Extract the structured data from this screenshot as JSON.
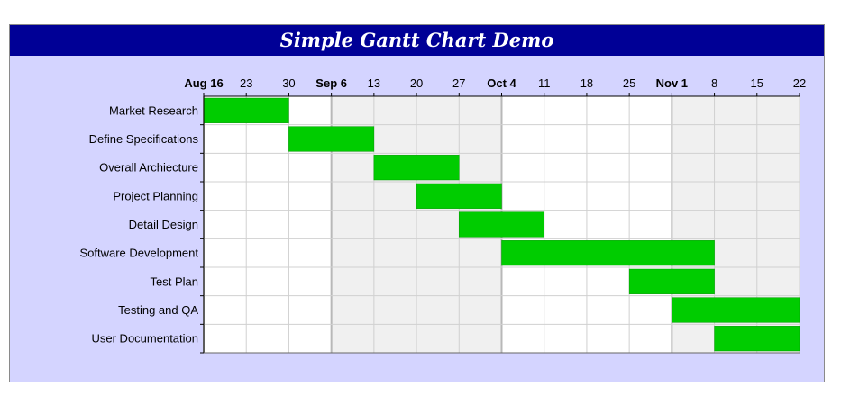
{
  "title": "Simple Gantt Chart Demo",
  "chart_data": {
    "type": "bar",
    "orientation": "horizontal-gantt",
    "title": "Simple Gantt Chart Demo",
    "xlabel": "",
    "ylabel": "",
    "xlim": [
      "2004-08-16",
      "2004-11-22"
    ],
    "x_ticks": [
      {
        "date": "2004-08-16",
        "label": "Aug 16",
        "major": true
      },
      {
        "date": "2004-08-23",
        "label": "23",
        "major": false
      },
      {
        "date": "2004-08-30",
        "label": "30",
        "major": false
      },
      {
        "date": "2004-09-06",
        "label": "Sep 6",
        "major": true
      },
      {
        "date": "2004-09-13",
        "label": "13",
        "major": false
      },
      {
        "date": "2004-09-20",
        "label": "20",
        "major": false
      },
      {
        "date": "2004-09-27",
        "label": "27",
        "major": false
      },
      {
        "date": "2004-10-04",
        "label": "Oct 4",
        "major": true
      },
      {
        "date": "2004-10-11",
        "label": "11",
        "major": false
      },
      {
        "date": "2004-10-18",
        "label": "18",
        "major": false
      },
      {
        "date": "2004-10-25",
        "label": "25",
        "major": false
      },
      {
        "date": "2004-11-01",
        "label": "Nov 1",
        "major": true
      },
      {
        "date": "2004-11-08",
        "label": "8",
        "major": false
      },
      {
        "date": "2004-11-15",
        "label": "15",
        "major": false
      },
      {
        "date": "2004-11-22",
        "label": "22",
        "major": false
      }
    ],
    "grid": true,
    "bar_color": "#00cc00",
    "shade_color": "#f0f0f0",
    "tasks": [
      {
        "name": "Market Research",
        "start": "2004-08-16",
        "end": "2004-08-30"
      },
      {
        "name": "Define Specifications",
        "start": "2004-08-30",
        "end": "2004-09-13"
      },
      {
        "name": "Overall Archiecture",
        "start": "2004-09-13",
        "end": "2004-09-27"
      },
      {
        "name": "Project Planning",
        "start": "2004-09-20",
        "end": "2004-10-04"
      },
      {
        "name": "Detail Design",
        "start": "2004-09-27",
        "end": "2004-10-11"
      },
      {
        "name": "Software Development",
        "start": "2004-10-04",
        "end": "2004-11-08"
      },
      {
        "name": "Test Plan",
        "start": "2004-10-25",
        "end": "2004-11-08"
      },
      {
        "name": "Testing and QA",
        "start": "2004-11-01",
        "end": "2004-11-22"
      },
      {
        "name": "User Documentation",
        "start": "2004-11-08",
        "end": "2004-11-22"
      }
    ]
  }
}
